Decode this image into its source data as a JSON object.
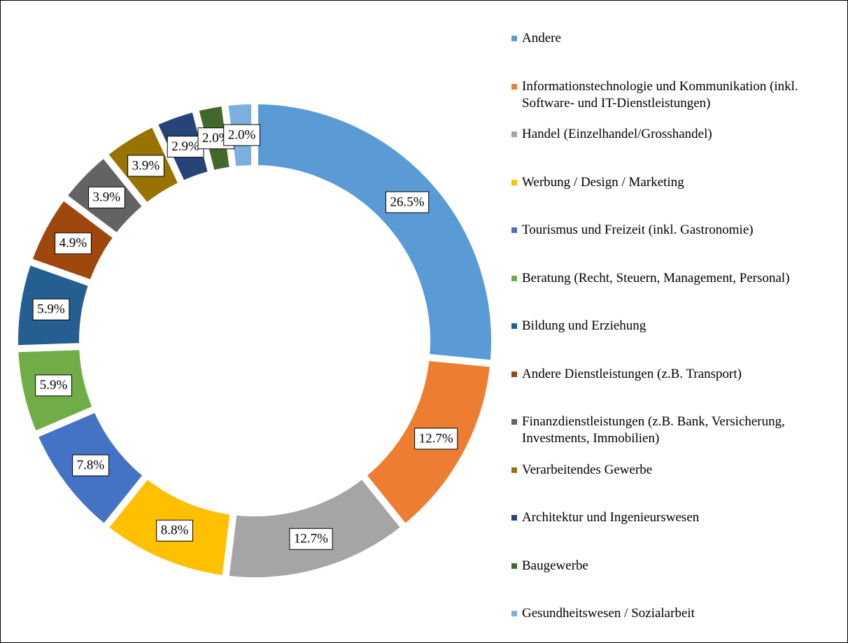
{
  "chart_data": {
    "type": "pie",
    "categories": [
      "Andere",
      "Informationstechnologie und Kommunikation (inkl. Software- und IT-Dienstleistungen)",
      "Handel (Einzelhandel/Grosshandel)",
      "Werbung / Design / Marketing",
      "Tourismus und Freizeit (inkl. Gastronomie)",
      "Beratung (Recht, Steuern, Management, Personal)",
      "Bildung und Erziehung",
      "Andere Dienstleistungen (z.B. Transport)",
      "Finanzdienstleistungen (z.B. Bank, Versicherung, Investments, Immobilien)",
      "Verarbeitendes Gewerbe",
      "Architektur und Ingenieurswesen",
      "Baugewerbe",
      "Gesundheitswesen / Sozialarbeit"
    ],
    "values": [
      26.5,
      12.7,
      12.7,
      8.8,
      7.8,
      5.9,
      5.9,
      4.9,
      3.9,
      3.9,
      2.9,
      2.0,
      2.0
    ],
    "value_labels": [
      "26.5%",
      "12.7%",
      "12.7%",
      "8.8%",
      "7.8%",
      "5.9%",
      "5.9%",
      "4.9%",
      "3.9%",
      "3.9%",
      "2.9%",
      "2.0%",
      "2.0%"
    ],
    "colors": [
      "#5b9bd5",
      "#ed7d31",
      "#a5a5a5",
      "#ffc000",
      "#4472c4",
      "#70ad47",
      "#255e91",
      "#9e480e",
      "#636363",
      "#997300",
      "#264478",
      "#43682b",
      "#7cafdd"
    ],
    "legend": "right"
  }
}
